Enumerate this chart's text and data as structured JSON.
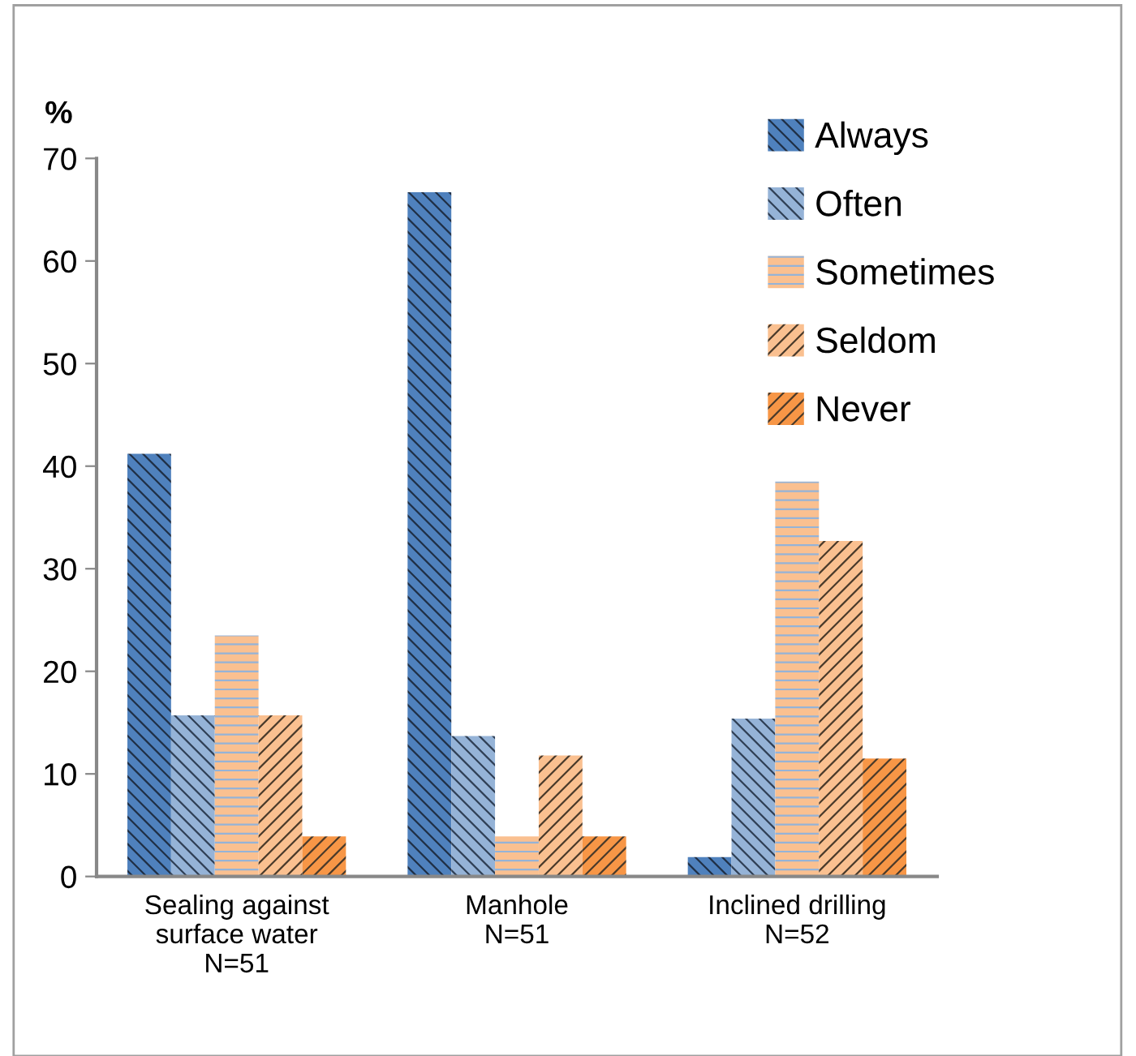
{
  "chart_data": {
    "type": "bar",
    "ylabel": "%",
    "categories": [
      "Sealing against\nsurface water\nN=51",
      "Manhole\nN=51",
      "Inclined drilling\nN=52"
    ],
    "series": [
      {
        "name": "Always",
        "color": "#4f81bd",
        "values": [
          41.2,
          66.7,
          1.9
        ]
      },
      {
        "name": "Often",
        "color": "#95b3d7",
        "values": [
          15.7,
          13.7,
          15.4
        ]
      },
      {
        "name": "Sometimes",
        "color": "#fac090",
        "values": [
          23.5,
          3.9,
          38.5
        ]
      },
      {
        "name": "Seldom",
        "color": "#fac090",
        "values": [
          15.7,
          11.8,
          32.7
        ]
      },
      {
        "name": "Never",
        "color": "#f79646",
        "values": [
          3.9,
          3.9,
          11.5
        ]
      }
    ],
    "ylim": [
      0,
      70
    ],
    "yticks": [
      0,
      10,
      20,
      30,
      40,
      50,
      60,
      70
    ],
    "grid": false,
    "legend": "top right"
  }
}
